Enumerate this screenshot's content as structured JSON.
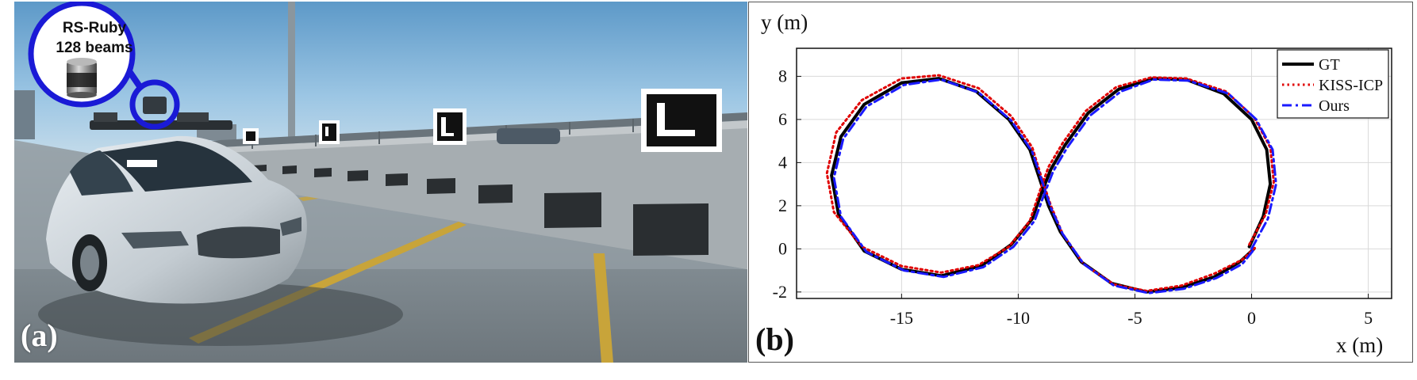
{
  "panel_a": {
    "label": "(a)",
    "sensor_line1": "RS-Ruby",
    "sensor_line2": "128 beams",
    "accent_color": "#1a1ad6"
  },
  "panel_b": {
    "label": "(b)"
  },
  "chart_data": {
    "type": "line",
    "title": "",
    "xlabel": "x (m)",
    "ylabel": "y (m)",
    "xlim": [
      -19.5,
      6
    ],
    "ylim": [
      -2.3,
      9.3
    ],
    "xticks": [
      -15,
      -10,
      -5,
      0,
      5
    ],
    "yticks": [
      -2,
      0,
      2,
      4,
      6,
      8
    ],
    "grid": true,
    "legend_position": "top-right",
    "series": [
      {
        "name": "GT",
        "color": "#000000",
        "style": "solid",
        "points": [
          [
            -0.1,
            0.1
          ],
          [
            0.5,
            1.5
          ],
          [
            0.8,
            3.0
          ],
          [
            0.65,
            4.6
          ],
          [
            0.0,
            6.0
          ],
          [
            -1.2,
            7.2
          ],
          [
            -2.8,
            7.85
          ],
          [
            -4.2,
            7.9
          ],
          [
            -5.7,
            7.4
          ],
          [
            -7.0,
            6.3
          ],
          [
            -8.0,
            4.8
          ],
          [
            -8.6,
            3.7
          ],
          [
            -9.0,
            2.6
          ],
          [
            -9.4,
            1.4
          ],
          [
            -10.3,
            0.2
          ],
          [
            -11.6,
            -0.8
          ],
          [
            -13.3,
            -1.25
          ],
          [
            -15.0,
            -0.95
          ],
          [
            -16.6,
            -0.1
          ],
          [
            -17.7,
            1.6
          ],
          [
            -18.0,
            3.4
          ],
          [
            -17.6,
            5.2
          ],
          [
            -16.6,
            6.7
          ],
          [
            -15.0,
            7.7
          ],
          [
            -13.4,
            7.9
          ],
          [
            -11.8,
            7.3
          ],
          [
            -10.4,
            6.0
          ],
          [
            -9.5,
            4.6
          ],
          [
            -9.1,
            3.3
          ],
          [
            -8.7,
            2.0
          ],
          [
            -8.2,
            0.8
          ],
          [
            -7.3,
            -0.6
          ],
          [
            -6.0,
            -1.6
          ],
          [
            -4.5,
            -2.0
          ],
          [
            -3.0,
            -1.8
          ],
          [
            -1.6,
            -1.3
          ],
          [
            -0.5,
            -0.6
          ],
          [
            0.1,
            0.0
          ]
        ]
      },
      {
        "name": "KISS-ICP",
        "color": "#e00000",
        "style": "dotted",
        "points": [
          [
            -0.1,
            0.2
          ],
          [
            0.6,
            1.6
          ],
          [
            0.95,
            3.1
          ],
          [
            0.8,
            4.7
          ],
          [
            0.1,
            6.1
          ],
          [
            -1.1,
            7.3
          ],
          [
            -2.8,
            7.9
          ],
          [
            -4.3,
            7.95
          ],
          [
            -5.8,
            7.5
          ],
          [
            -7.1,
            6.4
          ],
          [
            -8.1,
            4.9
          ],
          [
            -8.7,
            3.8
          ],
          [
            -9.1,
            2.6
          ],
          [
            -9.5,
            1.3
          ],
          [
            -10.4,
            0.1
          ],
          [
            -11.7,
            -0.75
          ],
          [
            -13.3,
            -1.1
          ],
          [
            -15.0,
            -0.8
          ],
          [
            -16.7,
            0.1
          ],
          [
            -17.9,
            1.7
          ],
          [
            -18.2,
            3.5
          ],
          [
            -17.8,
            5.4
          ],
          [
            -16.7,
            6.9
          ],
          [
            -15.0,
            7.9
          ],
          [
            -13.4,
            8.05
          ],
          [
            -11.7,
            7.45
          ],
          [
            -10.3,
            6.15
          ],
          [
            -9.4,
            4.7
          ],
          [
            -9.0,
            3.3
          ],
          [
            -8.6,
            2.0
          ],
          [
            -8.1,
            0.7
          ],
          [
            -7.2,
            -0.7
          ],
          [
            -5.9,
            -1.65
          ],
          [
            -4.5,
            -1.95
          ],
          [
            -3.0,
            -1.7
          ],
          [
            -1.6,
            -1.15
          ],
          [
            -0.4,
            -0.5
          ],
          [
            0.2,
            0.1
          ]
        ]
      },
      {
        "name": "Ours",
        "color": "#1a1aff",
        "style": "dashdot",
        "points": [
          [
            0.0,
            0.0
          ],
          [
            0.7,
            1.4
          ],
          [
            1.05,
            3.0
          ],
          [
            0.9,
            4.6
          ],
          [
            0.2,
            6.0
          ],
          [
            -1.0,
            7.2
          ],
          [
            -2.7,
            7.8
          ],
          [
            -4.2,
            7.85
          ],
          [
            -5.6,
            7.3
          ],
          [
            -6.9,
            6.2
          ],
          [
            -7.9,
            4.7
          ],
          [
            -8.5,
            3.6
          ],
          [
            -8.9,
            2.5
          ],
          [
            -9.3,
            1.3
          ],
          [
            -10.2,
            0.1
          ],
          [
            -11.5,
            -0.85
          ],
          [
            -13.2,
            -1.3
          ],
          [
            -14.9,
            -1.0
          ],
          [
            -16.5,
            -0.15
          ],
          [
            -17.6,
            1.5
          ],
          [
            -17.9,
            3.3
          ],
          [
            -17.5,
            5.1
          ],
          [
            -16.5,
            6.6
          ],
          [
            -14.9,
            7.6
          ],
          [
            -13.3,
            7.85
          ],
          [
            -11.7,
            7.25
          ],
          [
            -10.3,
            5.95
          ],
          [
            -9.4,
            4.5
          ],
          [
            -9.0,
            3.2
          ],
          [
            -8.6,
            1.9
          ],
          [
            -8.1,
            0.7
          ],
          [
            -7.2,
            -0.7
          ],
          [
            -5.9,
            -1.7
          ],
          [
            -4.4,
            -2.05
          ],
          [
            -2.9,
            -1.85
          ],
          [
            -1.5,
            -1.35
          ],
          [
            -0.4,
            -0.7
          ],
          [
            0.05,
            -0.1
          ]
        ]
      }
    ]
  }
}
